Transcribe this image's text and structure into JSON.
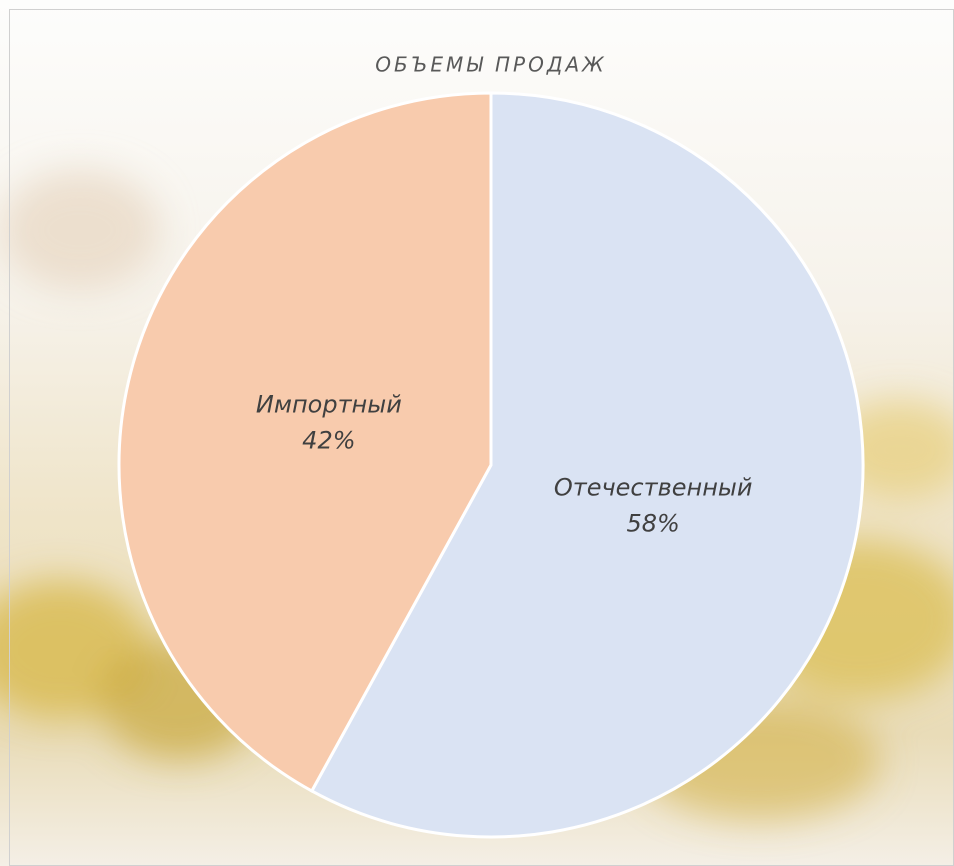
{
  "chart_data": {
    "type": "pie",
    "title": "ОБЪЕМЫ ПРОДАЖ",
    "categories": [
      "Отечественный",
      "Импортный"
    ],
    "values": [
      58,
      42
    ],
    "value_labels": [
      "58%",
      "42%"
    ],
    "colors": [
      "#dae3f3",
      "#f8cbad"
    ]
  }
}
